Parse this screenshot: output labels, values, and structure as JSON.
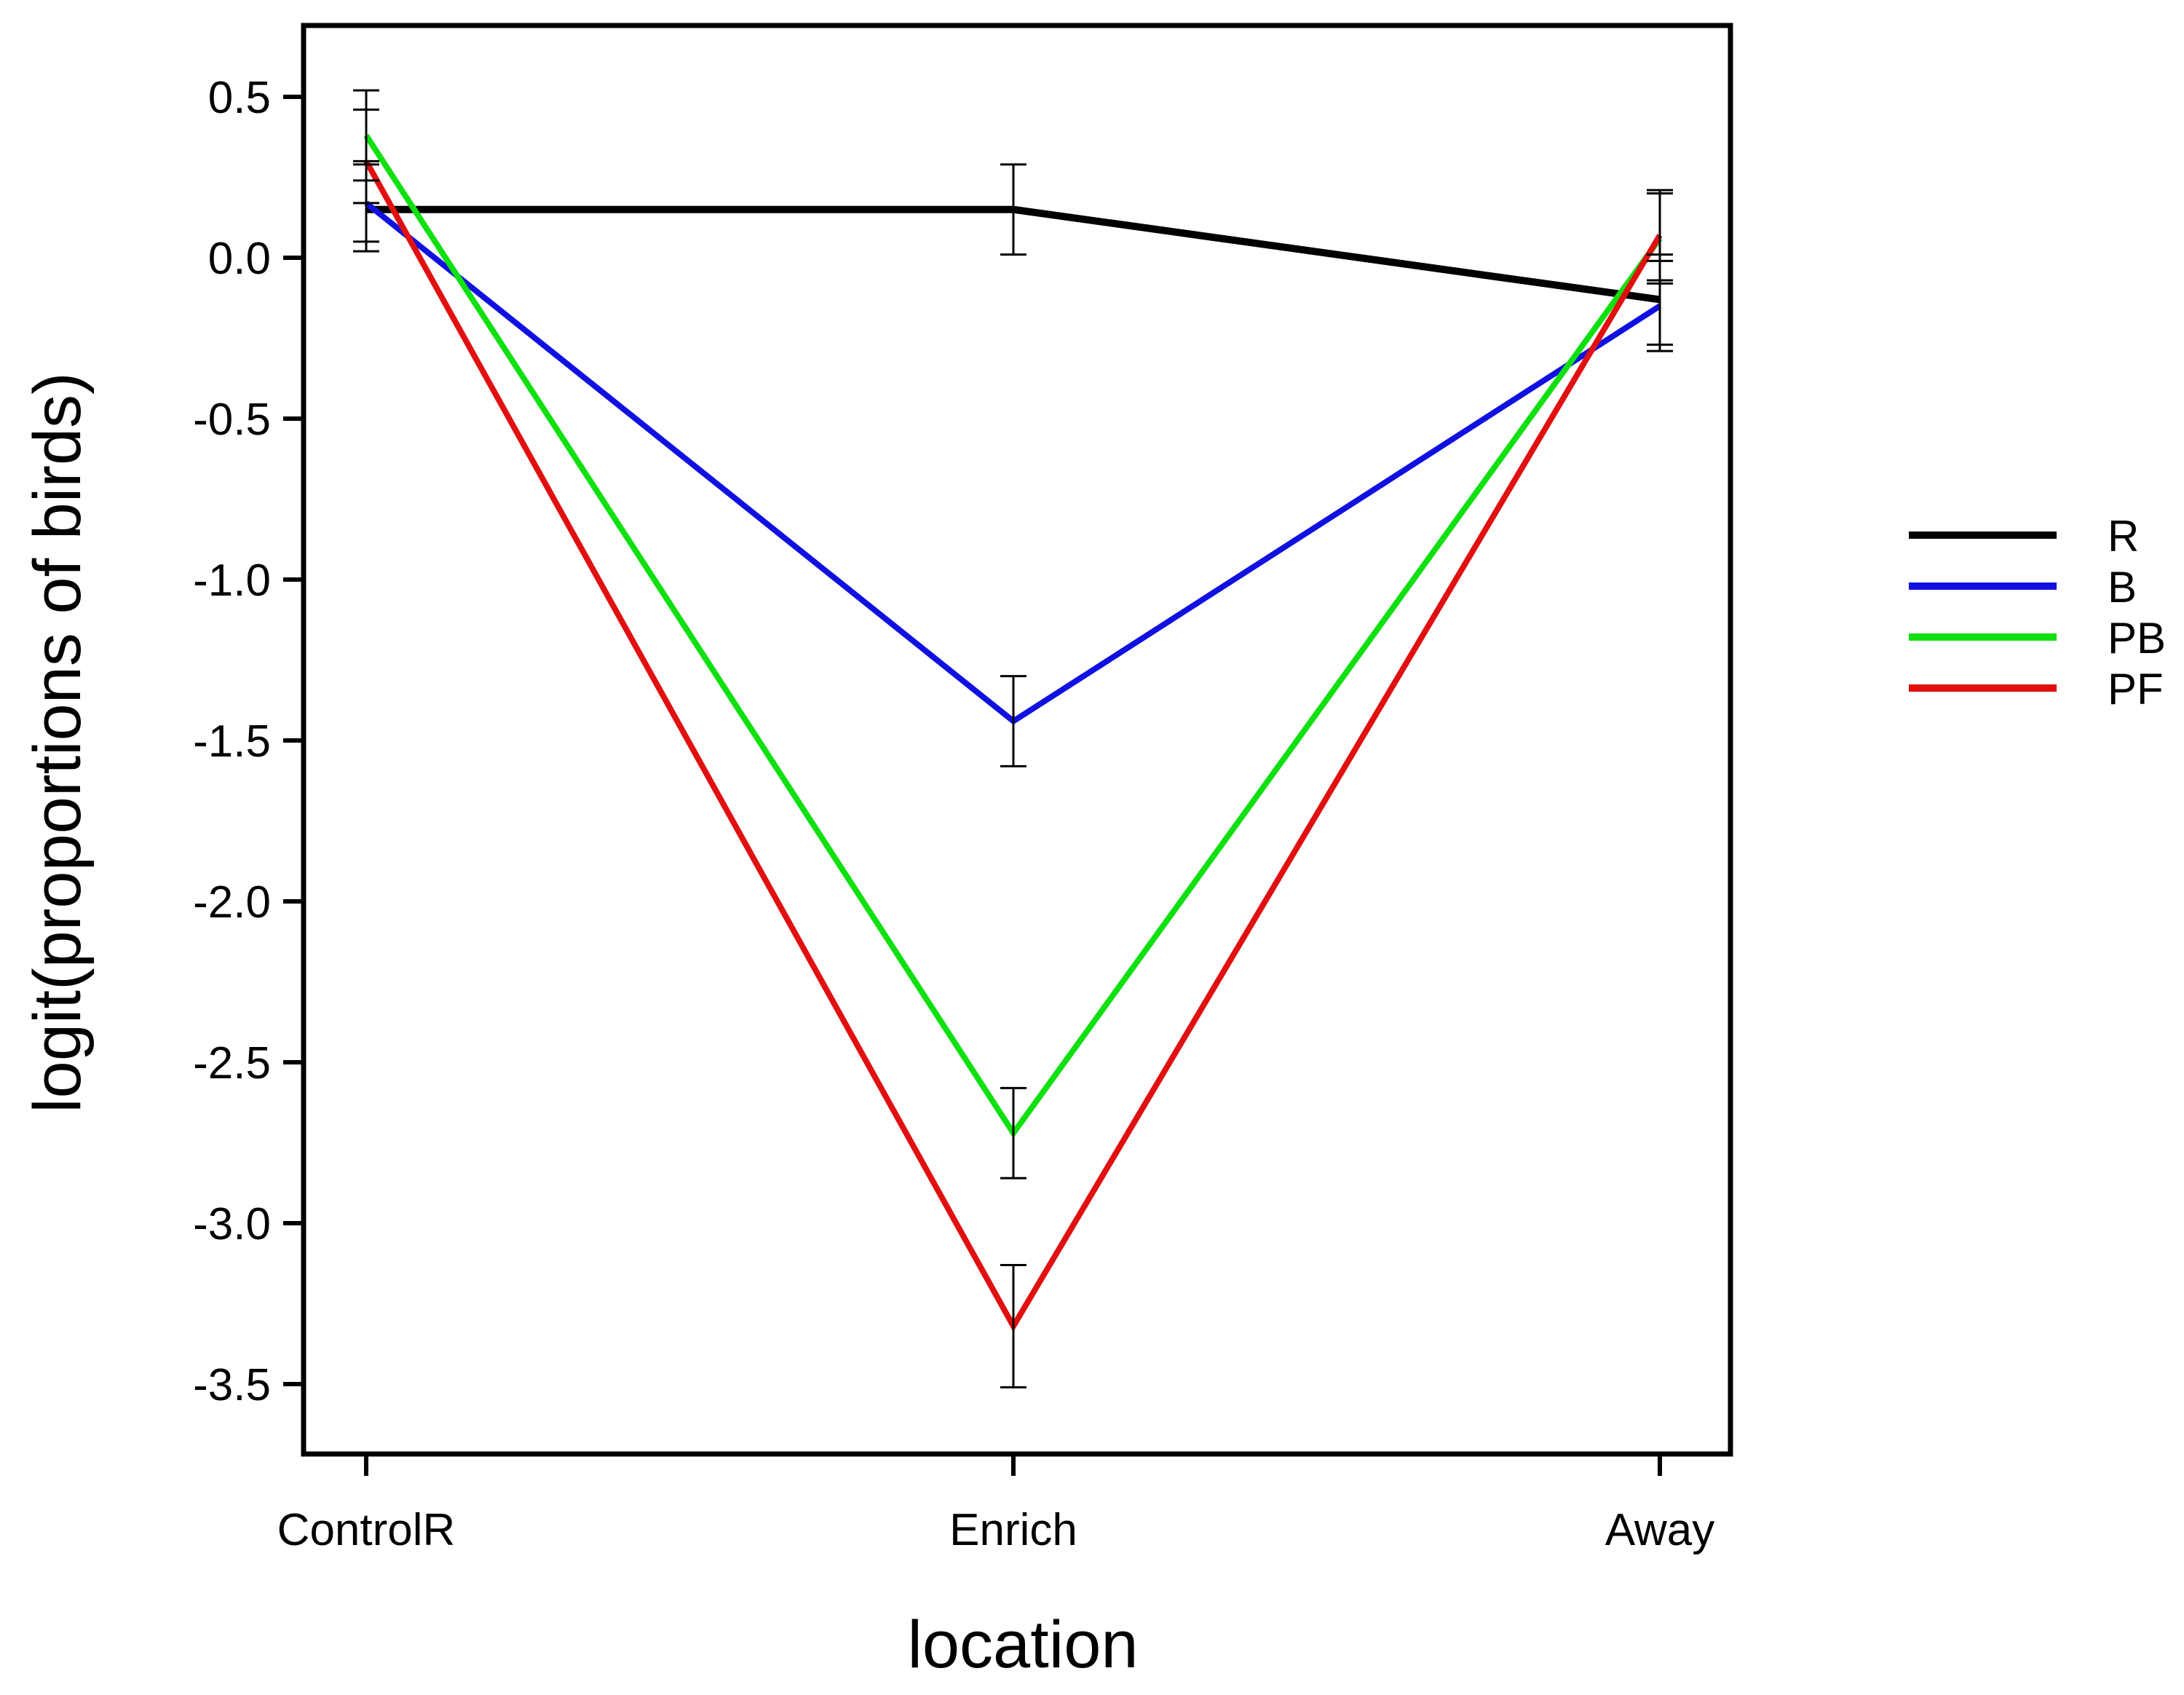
{
  "chart_data": {
    "type": "line",
    "title": "",
    "xlabel": "location",
    "ylabel": "logit(proportions of birds)",
    "categories": [
      "ControlR",
      "Enrich",
      "Away"
    ],
    "ylim": [
      -3.7,
      0.75
    ],
    "yticks": [
      0.5,
      0.0,
      -0.5,
      -1.0,
      -1.5,
      -2.0,
      -2.5,
      -3.0,
      -3.5
    ],
    "ytick_labels": [
      "0.5",
      "0.0",
      "-0.5",
      "-1.0",
      "-1.5",
      "-2.0",
      "-2.5",
      "-3.0",
      "-3.5"
    ],
    "grid": false,
    "legend_position": "right",
    "series": [
      {
        "name": "R",
        "color": "#000000",
        "values": [
          0.15,
          0.15,
          -0.13
        ],
        "err_low": [
          0.02,
          0.01,
          -0.27
        ],
        "err_high": [
          0.3,
          0.29,
          0.01
        ]
      },
      {
        "name": "B",
        "color": "#1010e0",
        "values": [
          0.17,
          -1.44,
          -0.15
        ],
        "err_low": [
          0.05,
          -1.58,
          -0.29
        ],
        "err_high": [
          0.29,
          -1.3,
          -0.01
        ]
      },
      {
        "name": "PB",
        "color": "#10e010",
        "values": [
          0.38,
          -2.72,
          0.06
        ],
        "err_low": [
          0.24,
          -2.86,
          -0.08
        ],
        "err_high": [
          0.52,
          -2.58,
          0.2
        ]
      },
      {
        "name": "PF",
        "color": "#e01010",
        "values": [
          0.3,
          -3.32,
          0.07
        ],
        "err_low": [
          0.17,
          -3.51,
          -0.07
        ],
        "err_high": [
          0.46,
          -3.13,
          0.21
        ]
      }
    ]
  }
}
